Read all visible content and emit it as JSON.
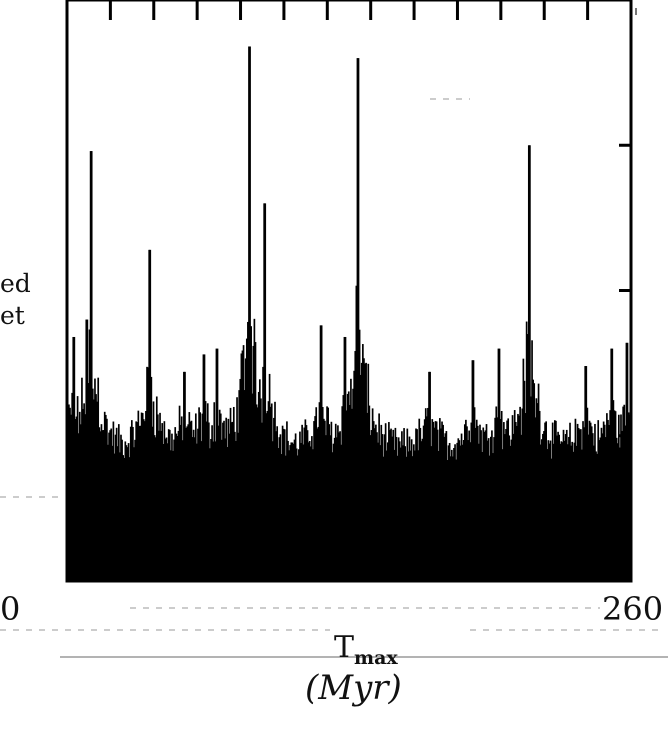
{
  "chart_data": {
    "type": "bar",
    "xlabel": "T",
    "xlabel_subscript": "max",
    "xunit": "(Myr)",
    "ylabel_fragment": [
      "ed",
      "et"
    ],
    "xlim": [
      0,
      260
    ],
    "x_tick_labels": [
      "0",
      "260"
    ],
    "ylim": [
      0,
      1.0
    ],
    "baseline_value": 0.2,
    "grid": false,
    "peaks": [
      {
        "x": 3,
        "value": 0.42
      },
      {
        "x": 9,
        "value": 0.45
      },
      {
        "x": 11,
        "value": 0.74
      },
      {
        "x": 38,
        "value": 0.57
      },
      {
        "x": 54,
        "value": 0.36
      },
      {
        "x": 63,
        "value": 0.39
      },
      {
        "x": 69,
        "value": 0.4
      },
      {
        "x": 84,
        "value": 0.92
      },
      {
        "x": 91,
        "value": 0.65
      },
      {
        "x": 117,
        "value": 0.44
      },
      {
        "x": 128,
        "value": 0.42
      },
      {
        "x": 134,
        "value": 0.9
      },
      {
        "x": 167,
        "value": 0.36
      },
      {
        "x": 187,
        "value": 0.38
      },
      {
        "x": 199,
        "value": 0.4
      },
      {
        "x": 213,
        "value": 0.75
      },
      {
        "x": 239,
        "value": 0.37
      },
      {
        "x": 251,
        "value": 0.4
      },
      {
        "x": 258,
        "value": 0.41
      }
    ]
  }
}
